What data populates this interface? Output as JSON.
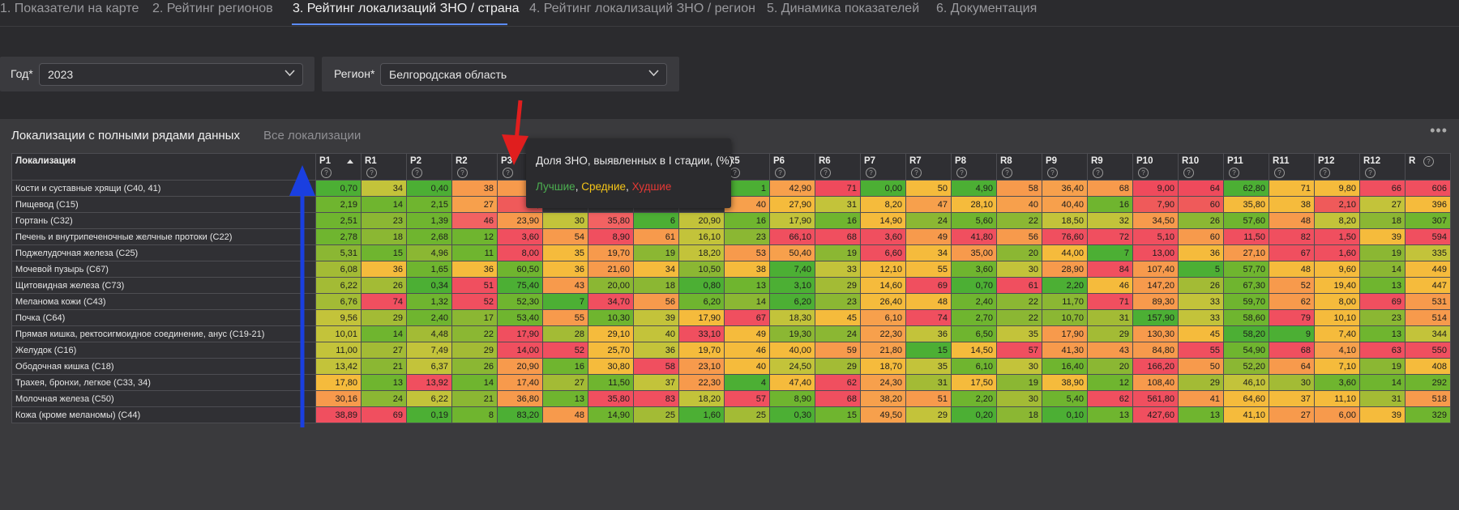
{
  "tabs": [
    {
      "label": "1. Показатели на карте",
      "active": false
    },
    {
      "label": "2. Рейтинг регионов",
      "active": false
    },
    {
      "label": "3. Рейтинг локализаций ЗНО / страна",
      "active": true
    },
    {
      "label": "4. Рейтинг локализаций ЗНО / регион",
      "active": false
    },
    {
      "label": "5. Динамика показателей",
      "active": false
    },
    {
      "label": "6. Документация",
      "active": false
    }
  ],
  "filters": {
    "year": {
      "label": "Год*",
      "value": "2023"
    },
    "region": {
      "label": "Регион*",
      "value": "Белгородская область"
    }
  },
  "panel": {
    "subtabs": [
      {
        "label": "Локализации с полными рядами данных",
        "active": true
      },
      {
        "label": "Все локализации",
        "active": false
      }
    ],
    "menu_icon": "ellipsis-icon"
  },
  "table": {
    "columns": [
      "Локализация",
      "P1",
      "R1",
      "P2",
      "R2",
      "P3",
      "R3",
      "P4",
      "R4",
      "P5",
      "R5",
      "P6",
      "R6",
      "P7",
      "R7",
      "P8",
      "R8",
      "P9",
      "R9",
      "P10",
      "R10",
      "P11",
      "R11",
      "P12",
      "R12",
      "R"
    ],
    "sorted_column": "P1",
    "sort_direction": "ascending",
    "rows": [
      [
        "Кости и суставные хрящи (С40, 41)",
        "0,70",
        "34",
        "0,40",
        "38",
        "21",
        "",
        "",
        "",
        "",
        "1",
        "42,90",
        "71",
        "0,00",
        "50",
        "4,90",
        "58",
        "36,40",
        "68",
        "9,00",
        "64",
        "62,80",
        "71",
        "9,80",
        "66",
        "606"
      ],
      [
        "Пищевод (С15)",
        "2,19",
        "14",
        "2,15",
        "27",
        "8,",
        "",
        "",
        "",
        "",
        "40",
        "27,90",
        "31",
        "8,20",
        "47",
        "28,10",
        "40",
        "40,40",
        "16",
        "7,90",
        "60",
        "35,80",
        "38",
        "2,10",
        "27",
        "396"
      ],
      [
        "Гортань (С32)",
        "2,51",
        "23",
        "1,39",
        "46",
        "23,90",
        "30",
        "35,80",
        "6",
        "20,90",
        "16",
        "17,90",
        "16",
        "14,90",
        "24",
        "5,60",
        "22",
        "18,50",
        "32",
        "34,50",
        "26",
        "57,60",
        "48",
        "8,20",
        "18",
        "307"
      ],
      [
        "Печень и внутрипеченочные желчные протоки (С22)",
        "2,78",
        "18",
        "2,68",
        "12",
        "3,60",
        "54",
        "8,90",
        "61",
        "16,10",
        "23",
        "66,10",
        "68",
        "3,60",
        "49",
        "41,80",
        "56",
        "76,60",
        "72",
        "5,10",
        "60",
        "11,50",
        "82",
        "1,50",
        "39",
        "594"
      ],
      [
        "Поджелудочная железа (С25)",
        "5,31",
        "15",
        "4,96",
        "11",
        "8,00",
        "35",
        "19,70",
        "19",
        "18,20",
        "53",
        "50,40",
        "19",
        "6,60",
        "34",
        "35,00",
        "20",
        "44,00",
        "7",
        "13,00",
        "36",
        "27,10",
        "67",
        "1,60",
        "19",
        "335"
      ],
      [
        "Мочевой пузырь (С67)",
        "6,08",
        "36",
        "1,65",
        "36",
        "60,50",
        "36",
        "21,60",
        "34",
        "10,50",
        "38",
        "7,40",
        "33",
        "12,10",
        "55",
        "3,60",
        "30",
        "28,90",
        "84",
        "107,40",
        "5",
        "57,70",
        "48",
        "9,60",
        "14",
        "449"
      ],
      [
        "Щитовидная железа (С73)",
        "6,22",
        "26",
        "0,34",
        "51",
        "75,40",
        "43",
        "20,00",
        "18",
        "0,80",
        "13",
        "3,10",
        "29",
        "14,60",
        "69",
        "0,70",
        "61",
        "2,20",
        "46",
        "147,20",
        "26",
        "67,30",
        "52",
        "19,40",
        "13",
        "447"
      ],
      [
        "Меланома кожи (С43)",
        "6,76",
        "74",
        "1,32",
        "52",
        "52,30",
        "7",
        "34,70",
        "56",
        "6,20",
        "14",
        "6,20",
        "23",
        "26,40",
        "48",
        "2,40",
        "22",
        "11,70",
        "71",
        "89,30",
        "33",
        "59,70",
        "62",
        "8,00",
        "69",
        "531"
      ],
      [
        "Почка (С64)",
        "9,56",
        "29",
        "2,40",
        "17",
        "53,40",
        "55",
        "10,30",
        "39",
        "17,90",
        "67",
        "18,30",
        "45",
        "6,10",
        "74",
        "2,70",
        "22",
        "10,70",
        "31",
        "157,90",
        "33",
        "58,60",
        "79",
        "10,10",
        "23",
        "514"
      ],
      [
        "Прямая кишка, ректосигмоидное соединение, анус (С19-21)",
        "10,01",
        "14",
        "4,48",
        "22",
        "17,90",
        "28",
        "29,10",
        "40",
        "33,10",
        "49",
        "19,30",
        "24",
        "22,30",
        "36",
        "6,50",
        "35",
        "17,90",
        "29",
        "130,30",
        "45",
        "58,20",
        "9",
        "7,40",
        "13",
        "344"
      ],
      [
        "Желудок (С16)",
        "11,00",
        "27",
        "7,49",
        "29",
        "14,00",
        "52",
        "25,70",
        "36",
        "19,70",
        "46",
        "40,00",
        "59",
        "21,80",
        "15",
        "14,50",
        "57",
        "41,30",
        "43",
        "84,80",
        "55",
        "54,90",
        "68",
        "4,10",
        "63",
        "550"
      ],
      [
        "Ободочная кишка (С18)",
        "13,42",
        "21",
        "6,37",
        "26",
        "20,90",
        "16",
        "30,80",
        "58",
        "23,10",
        "40",
        "24,50",
        "29",
        "18,70",
        "35",
        "6,10",
        "30",
        "16,40",
        "20",
        "166,20",
        "50",
        "52,20",
        "64",
        "7,10",
        "19",
        "408"
      ],
      [
        "Трахея, бронхи, легкое (С33, 34)",
        "17,80",
        "13",
        "13,92",
        "14",
        "17,40",
        "27",
        "11,50",
        "37",
        "22,30",
        "4",
        "47,40",
        "62",
        "24,30",
        "31",
        "17,50",
        "19",
        "38,90",
        "12",
        "108,40",
        "29",
        "46,10",
        "30",
        "3,60",
        "14",
        "292"
      ],
      [
        "Молочная железа (С50)",
        "30,16",
        "24",
        "6,22",
        "21",
        "36,80",
        "13",
        "35,80",
        "83",
        "18,20",
        "57",
        "8,90",
        "68",
        "38,20",
        "51",
        "2,20",
        "30",
        "5,40",
        "62",
        "561,80",
        "41",
        "64,60",
        "37",
        "11,10",
        "31",
        "518"
      ],
      [
        "Кожа (кроме меланомы) (С44)",
        "38,89",
        "69",
        "0,19",
        "8",
        "83,20",
        "48",
        "14,90",
        "25",
        "1,60",
        "25",
        "0,30",
        "15",
        "49,50",
        "29",
        "0,20",
        "18",
        "0,10",
        "13",
        "427,60",
        "13",
        "41,10",
        "27",
        "6,00",
        "39",
        "329"
      ]
    ],
    "cell_colors": [
      [
        "#4caf34",
        "#c3c33a",
        "#4caf34",
        "#f79a4c",
        "#f79a4c",
        "",
        "",
        "",
        "",
        "#4caf34",
        "#f7a04c",
        "#ef4a5c",
        "#4caf34",
        "#f5bb3c",
        "#4caf34",
        "#f79a4c",
        "#f7a04c",
        "#f79a4c",
        "#ef4a5c",
        "#ef4a5c",
        "#4caf34",
        "#f5bb3c",
        "#f5bb3c",
        "#f04f5f",
        "#f04f5f"
      ],
      [
        "#6fb52f",
        "#6fb52f",
        "#6fb52f",
        "#f7a04c",
        "#ef5a5a",
        "",
        "",
        "",
        "",
        "#f7a04c",
        "#f5bb3c",
        "#c3c33a",
        "#f5bb3c",
        "#f7a04c",
        "#f5bb3c",
        "#f7a04c",
        "#f7a04c",
        "#6fb52f",
        "#ef5a5a",
        "#ef5a5a",
        "#f5bb3c",
        "#f5bb3c",
        "#ef5a5a",
        "#c3c33a",
        "#f5bb3c"
      ],
      [
        "#6fb52f",
        "#8bb733",
        "#6fb52f",
        "#f26262",
        "#f79a4c",
        "#c3c33a",
        "#f26262",
        "#4caf34",
        "#c3c33a",
        "#6fb52f",
        "#c3c33a",
        "#6fb52f",
        "#f5bb3c",
        "#8bb733",
        "#6fb52f",
        "#8bb733",
        "#c3c33a",
        "#c3c33a",
        "#f79a4c",
        "#8bb733",
        "#6fb52f",
        "#f79a4c",
        "#c3c33a",
        "#8bb733",
        "#6fb52f"
      ],
      [
        "#6fb52f",
        "#8bb733",
        "#6fb52f",
        "#6fb52f",
        "#f04f5f",
        "#f79a4c",
        "#f04f5f",
        "#f79a4c",
        "#c3c33a",
        "#8bb733",
        "#f04f5f",
        "#f04f5f",
        "#f04f5f",
        "#f79a4c",
        "#f04f5f",
        "#f79a4c",
        "#f04f5f",
        "#f04f5f",
        "#f04f5f",
        "#f79a4c",
        "#f04f5f",
        "#f04f5f",
        "#f04f5f",
        "#f5bb3c",
        "#f04f5f"
      ],
      [
        "#8bb733",
        "#6fb52f",
        "#8bb733",
        "#6fb52f",
        "#f04f5f",
        "#f5bb3c",
        "#f79a4c",
        "#8bb733",
        "#c3c33a",
        "#f79a4c",
        "#f7a04c",
        "#8bb733",
        "#f04f5f",
        "#f5bb3c",
        "#f79a4c",
        "#8bb733",
        "#f5bb3c",
        "#4caf34",
        "#f04f5f",
        "#f5bb3c",
        "#f79a4c",
        "#f04f5f",
        "#f04f5f",
        "#8bb733",
        "#c3c33a"
      ],
      [
        "#a3bb35",
        "#f5bb3c",
        "#6fb52f",
        "#f5bb3c",
        "#6fb52f",
        "#f5bb3c",
        "#f79a4c",
        "#f5bb3c",
        "#8bb733",
        "#f5bb3c",
        "#4caf34",
        "#c3c33a",
        "#f5bb3c",
        "#f5bb3c",
        "#6fb52f",
        "#c3c33a",
        "#f79a4c",
        "#f04f5f",
        "#f79a4c",
        "#4caf34",
        "#6fb52f",
        "#f5bb3c",
        "#f5bb3c",
        "#8bb733",
        "#f5bb3c"
      ],
      [
        "#a3bb35",
        "#a3bb35",
        "#4caf34",
        "#f04f5f",
        "#4caf34",
        "#f79a4c",
        "#8bb733",
        "#8bb733",
        "#4caf34",
        "#6fb52f",
        "#4caf34",
        "#a3bb35",
        "#f5bb3c",
        "#f04f5f",
        "#4caf34",
        "#f04f5f",
        "#4caf34",
        "#f5bb3c",
        "#f79a4c",
        "#a3bb35",
        "#6fb52f",
        "#f79a4c",
        "#f5bb3c",
        "#6fb52f",
        "#f5bb3c"
      ],
      [
        "#a3bb35",
        "#f04f5f",
        "#6fb52f",
        "#f04f5f",
        "#6fb52f",
        "#4caf34",
        "#f04f5f",
        "#f79a4c",
        "#6fb52f",
        "#8bb733",
        "#4caf34",
        "#8bb733",
        "#f5bb3c",
        "#f5bb3c",
        "#6fb52f",
        "#8bb733",
        "#8bb733",
        "#f04f5f",
        "#f79a4c",
        "#c3c33a",
        "#6fb52f",
        "#f79a4c",
        "#f5bb3c",
        "#f04f5f",
        "#f79a4c"
      ],
      [
        "#c3c33a",
        "#a3bb35",
        "#6fb52f",
        "#8bb733",
        "#6fb52f",
        "#f79a4c",
        "#6fb52f",
        "#c3c33a",
        "#f5bb3c",
        "#f04f5f",
        "#c3c33a",
        "#f5bb3c",
        "#f7a04c",
        "#f04f5f",
        "#6fb52f",
        "#8bb733",
        "#8bb733",
        "#a3bb35",
        "#4caf34",
        "#c3c33a",
        "#6fb52f",
        "#f04f5f",
        "#f5bb3c",
        "#8bb733",
        "#f79a4c"
      ],
      [
        "#c3c33a",
        "#6fb52f",
        "#a3bb35",
        "#8bb733",
        "#f04f5f",
        "#a3bb35",
        "#f5bb3c",
        "#c3c33a",
        "#f04f5f",
        "#f5bb3c",
        "#8bb733",
        "#8bb733",
        "#f7a04c",
        "#c3c33a",
        "#6fb52f",
        "#c3c33a",
        "#f79a4c",
        "#a3bb35",
        "#f79a4c",
        "#f5bb3c",
        "#4caf34",
        "#4caf34",
        "#f5bb3c",
        "#6fb52f",
        "#c3c33a"
      ],
      [
        "#c3c33a",
        "#a3bb35",
        "#c3c33a",
        "#a3bb35",
        "#f04f5f",
        "#f04f5f",
        "#f5bb3c",
        "#c3c33a",
        "#f5bb3c",
        "#f5bb3c",
        "#f5bb3c",
        "#f79a4c",
        "#f7a04c",
        "#4caf34",
        "#f5bb3c",
        "#f04f5f",
        "#f79a4c",
        "#f79a4c",
        "#f79a4c",
        "#f04f5f",
        "#6fb52f",
        "#f04f5f",
        "#f7a04c",
        "#f04f5f",
        "#f04f5f"
      ],
      [
        "#c3c33a",
        "#8bb733",
        "#c3c33a",
        "#8bb733",
        "#f79a4c",
        "#6fb52f",
        "#f5bb3c",
        "#f04f5f",
        "#f79a4c",
        "#f5bb3c",
        "#c3c33a",
        "#a3bb35",
        "#f5bb3c",
        "#c3c33a",
        "#6fb52f",
        "#c3c33a",
        "#6fb52f",
        "#8bb733",
        "#f04f5f",
        "#f79a4c",
        "#8bb733",
        "#f79a4c",
        "#f5bb3c",
        "#8bb733",
        "#f5bb3c"
      ],
      [
        "#f5bb3c",
        "#6fb52f",
        "#f04f5f",
        "#6fb52f",
        "#f79a4c",
        "#a3bb35",
        "#6fb52f",
        "#c3c33a",
        "#f79a4c",
        "#4caf34",
        "#f5bb3c",
        "#f04f5f",
        "#f7a04c",
        "#a3bb35",
        "#f5bb3c",
        "#8bb733",
        "#f5bb3c",
        "#6fb52f",
        "#f79a4c",
        "#a3bb35",
        "#c3c33a",
        "#a3bb35",
        "#6fb52f",
        "#6fb52f",
        "#6fb52f"
      ],
      [
        "#f79a4c",
        "#8bb733",
        "#c3c33a",
        "#8bb733",
        "#f79a4c",
        "#6fb52f",
        "#f04f5f",
        "#f04f5f",
        "#c3c33a",
        "#f04f5f",
        "#6fb52f",
        "#f04f5f",
        "#f7a04c",
        "#f79a4c",
        "#6fb52f",
        "#a3bb35",
        "#6fb52f",
        "#f04f5f",
        "#f04f5f",
        "#f79a4c",
        "#f5bb3c",
        "#f5bb3c",
        "#f5bb3c",
        "#a3bb35",
        "#f79a4c"
      ],
      [
        "#f04f5f",
        "#f04f5f",
        "#4caf34",
        "#6fb52f",
        "#4caf34",
        "#f79a4c",
        "#6fb52f",
        "#a3bb35",
        "#4caf34",
        "#a3bb35",
        "#4caf34",
        "#6fb52f",
        "#f7a04c",
        "#c3c33a",
        "#4caf34",
        "#8bb733",
        "#4caf34",
        "#6fb52f",
        "#f04f5f",
        "#6fb52f",
        "#f5bb3c",
        "#f79a4c",
        "#f79a4c",
        "#f5bb3c",
        "#6fb52f"
      ]
    ]
  },
  "tooltip": {
    "title": "Доля ЗНО, выявленных в I стадии, (%)",
    "best": "Лучшие",
    "medium": "Средние",
    "worst": "Худшие",
    "sep1": ", ",
    "sep2": ", ",
    "best_color": "#4caf50",
    "medium_color": "#f5c518",
    "worst_color": "#e53935"
  },
  "annotations": {
    "red_arrow_color": "#e01e1e",
    "blue_arrow_color": "#1a3fe0"
  }
}
